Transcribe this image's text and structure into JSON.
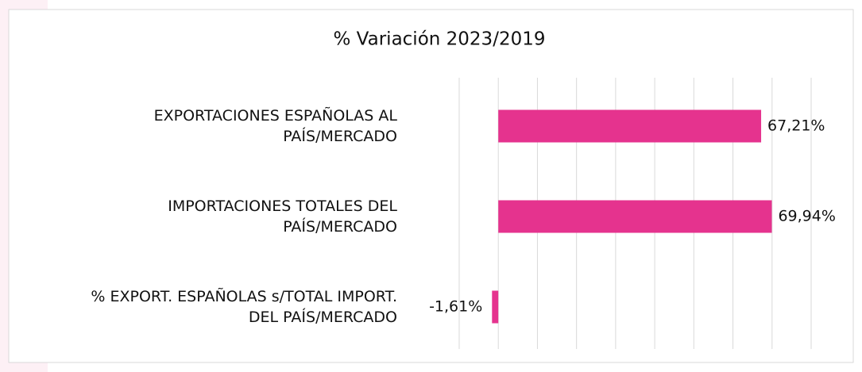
{
  "chart_data": {
    "type": "barh",
    "title": "% Variación 2023/2019",
    "categories": [
      "EXPORTACIONES ESPAÑOLAS AL\nPAÍS/MERCADO",
      "IMPORTACIONES TOTALES DEL\nPAÍS/MERCADO",
      "% EXPORT. ESPAÑOLAS s/TOTAL IMPORT.\nDEL PAÍS/MERCADO"
    ],
    "values": [
      67.21,
      69.94,
      -1.61
    ],
    "value_labels": [
      "67,21%",
      "69,94%",
      "-1,61%"
    ],
    "color": "#e5338e",
    "xlim": [
      -10,
      80
    ],
    "xticks": [
      -10,
      0,
      10,
      20,
      30,
      40,
      50,
      60,
      70,
      80
    ],
    "grid": true
  }
}
